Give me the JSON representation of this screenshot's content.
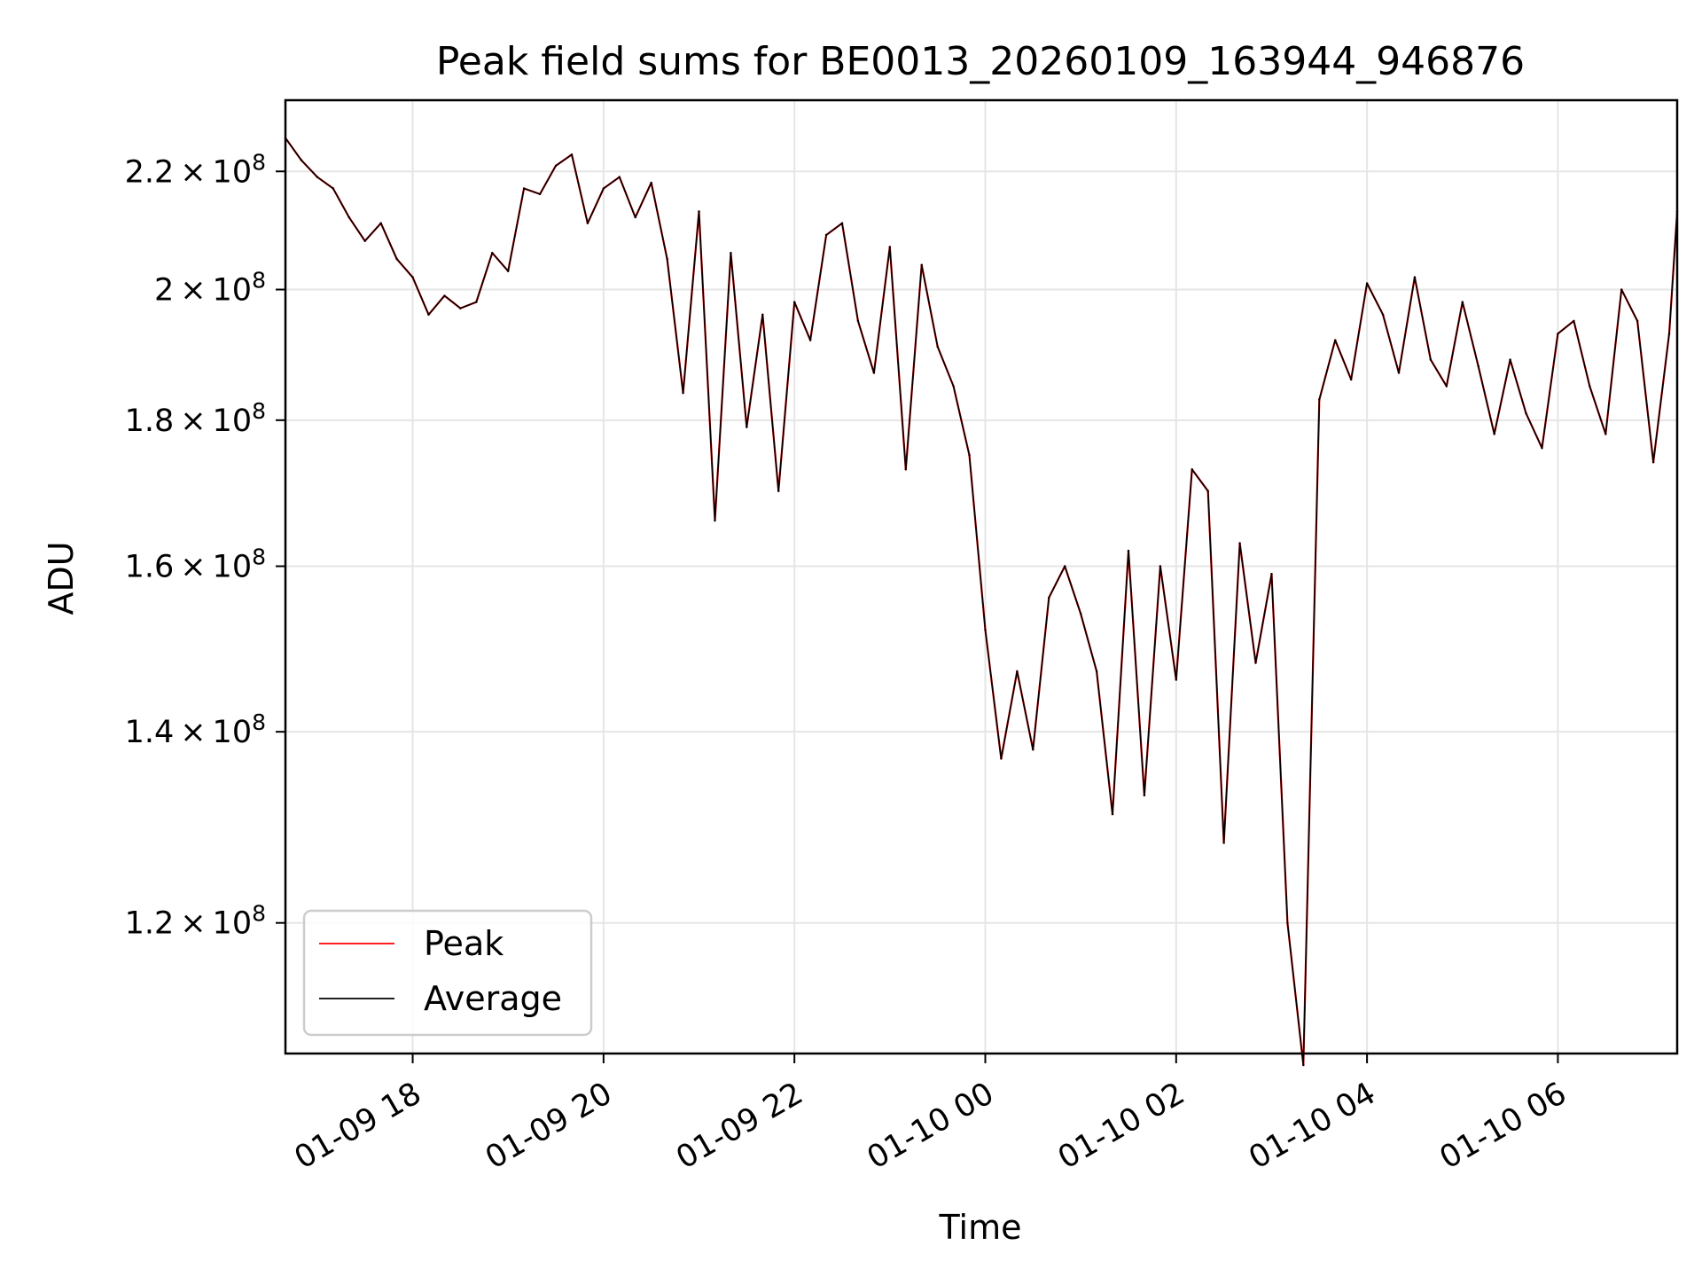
{
  "chart_data": {
    "type": "line",
    "title": "Peak field sums for BE0013_20260109_163944_946876",
    "xlabel": "Time",
    "ylabel": "ADU",
    "y_scale": "log",
    "grid": true,
    "legend_position": "lower-left",
    "xlim": [
      "2026-01-09 16:40",
      "2026-01-10 07:15"
    ],
    "ylim": [
      108000000.0,
      233000000.0
    ],
    "x_ticks": [
      {
        "value": "2026-01-09 18:00",
        "label": "01-09 18"
      },
      {
        "value": "2026-01-09 20:00",
        "label": "01-09 20"
      },
      {
        "value": "2026-01-09 22:00",
        "label": "01-09 22"
      },
      {
        "value": "2026-01-10 00:00",
        "label": "01-10 00"
      },
      {
        "value": "2026-01-10 02:00",
        "label": "01-10 02"
      },
      {
        "value": "2026-01-10 04:00",
        "label": "01-10 04"
      },
      {
        "value": "2026-01-10 06:00",
        "label": "01-10 06"
      }
    ],
    "y_ticks": [
      {
        "value": 120000000,
        "mantissa": "1.2",
        "base": "10",
        "exp": "8"
      },
      {
        "value": 140000000,
        "mantissa": "1.4",
        "base": "10",
        "exp": "8"
      },
      {
        "value": 160000000,
        "mantissa": "1.6",
        "base": "10",
        "exp": "8"
      },
      {
        "value": 180000000,
        "mantissa": "1.8",
        "base": "10",
        "exp": "8"
      },
      {
        "value": 200000000,
        "mantissa": "2",
        "base": "10",
        "exp": "8"
      },
      {
        "value": 220000000,
        "mantissa": "2.2",
        "base": "10",
        "exp": "8"
      }
    ],
    "x": [
      "2026-01-09 16:40",
      "2026-01-09 16:50",
      "2026-01-09 17:00",
      "2026-01-09 17:10",
      "2026-01-09 17:20",
      "2026-01-09 17:30",
      "2026-01-09 17:40",
      "2026-01-09 17:50",
      "2026-01-09 18:00",
      "2026-01-09 18:10",
      "2026-01-09 18:20",
      "2026-01-09 18:30",
      "2026-01-09 18:40",
      "2026-01-09 18:50",
      "2026-01-09 19:00",
      "2026-01-09 19:10",
      "2026-01-09 19:20",
      "2026-01-09 19:30",
      "2026-01-09 19:40",
      "2026-01-09 19:50",
      "2026-01-09 20:00",
      "2026-01-09 20:10",
      "2026-01-09 20:20",
      "2026-01-09 20:30",
      "2026-01-09 20:40",
      "2026-01-09 20:50",
      "2026-01-09 21:00",
      "2026-01-09 21:10",
      "2026-01-09 21:20",
      "2026-01-09 21:30",
      "2026-01-09 21:40",
      "2026-01-09 21:50",
      "2026-01-09 22:00",
      "2026-01-09 22:10",
      "2026-01-09 22:20",
      "2026-01-09 22:30",
      "2026-01-09 22:40",
      "2026-01-09 22:50",
      "2026-01-09 23:00",
      "2026-01-09 23:10",
      "2026-01-09 23:20",
      "2026-01-09 23:30",
      "2026-01-09 23:40",
      "2026-01-09 23:50",
      "2026-01-10 00:00",
      "2026-01-10 00:10",
      "2026-01-10 00:20",
      "2026-01-10 00:30",
      "2026-01-10 00:40",
      "2026-01-10 00:50",
      "2026-01-10 01:00",
      "2026-01-10 01:10",
      "2026-01-10 01:20",
      "2026-01-10 01:30",
      "2026-01-10 01:40",
      "2026-01-10 01:50",
      "2026-01-10 02:00",
      "2026-01-10 02:10",
      "2026-01-10 02:20",
      "2026-01-10 02:30",
      "2026-01-10 02:40",
      "2026-01-10 02:50",
      "2026-01-10 03:00",
      "2026-01-10 03:10",
      "2026-01-10 03:20",
      "2026-01-10 03:30",
      "2026-01-10 03:40",
      "2026-01-10 03:50",
      "2026-01-10 04:00",
      "2026-01-10 04:10",
      "2026-01-10 04:20",
      "2026-01-10 04:30",
      "2026-01-10 04:40",
      "2026-01-10 04:50",
      "2026-01-10 05:00",
      "2026-01-10 05:10",
      "2026-01-10 05:20",
      "2026-01-10 05:30",
      "2026-01-10 05:40",
      "2026-01-10 05:50",
      "2026-01-10 06:00",
      "2026-01-10 06:10",
      "2026-01-10 06:20",
      "2026-01-10 06:30",
      "2026-01-10 06:40",
      "2026-01-10 06:50",
      "2026-01-10 07:00",
      "2026-01-10 07:10",
      "2026-01-10 07:15"
    ],
    "series": [
      {
        "name": "Peak",
        "color": "#ff0000",
        "values": [
          226000000.0,
          222000000.0,
          219000000.0,
          217000000.0,
          212000000.0,
          208000000.0,
          211000000.0,
          205000000.0,
          202000000.0,
          196000000.0,
          199000000.0,
          197000000.0,
          198000000.0,
          206000000.0,
          203000000.0,
          217000000.0,
          216000000.0,
          221000000.0,
          223000000.0,
          211000000.0,
          217000000.0,
          219000000.0,
          212000000.0,
          218000000.0,
          205000000.0,
          184000000.0,
          213000000.0,
          166000000.0,
          206000000.0,
          179000000.0,
          196000000.0,
          170000000.0,
          198000000.0,
          192000000.0,
          209000000.0,
          211000000.0,
          195000000.0,
          187000000.0,
          207000000.0,
          173000000.0,
          204000000.0,
          191000000.0,
          185000000.0,
          175000000.0,
          152000000.0,
          137000000.0,
          147000000.0,
          138000000.0,
          156000000.0,
          160000000.0,
          154000000.0,
          147000000.0,
          131000000.0,
          162000000.0,
          133000000.0,
          160000000.0,
          146000000.0,
          173000000.0,
          170000000.0,
          128000000.0,
          163000000.0,
          148000000.0,
          159000000.0,
          120000000.0,
          107000000.0,
          183000000.0,
          192000000.0,
          186000000.0,
          201000000.0,
          196000000.0,
          187000000.0,
          202000000.0,
          189000000.0,
          185000000.0,
          198000000.0,
          188000000.0,
          178000000.0,
          189000000.0,
          181000000.0,
          176000000.0,
          193000000.0,
          195000000.0,
          185000000.0,
          178000000.0,
          200000000.0,
          195000000.0,
          174000000.0,
          193000000.0,
          213000000.0
        ]
      },
      {
        "name": "Average",
        "color": "#000000",
        "values": [
          226000000.0,
          222000000.0,
          219000000.0,
          217000000.0,
          212000000.0,
          208000000.0,
          211000000.0,
          205000000.0,
          202000000.0,
          196000000.0,
          199000000.0,
          197000000.0,
          198000000.0,
          206000000.0,
          203000000.0,
          217000000.0,
          216000000.0,
          221000000.0,
          223000000.0,
          211000000.0,
          217000000.0,
          219000000.0,
          212000000.0,
          218000000.0,
          205000000.0,
          184000000.0,
          213000000.0,
          166000000.0,
          206000000.0,
          179000000.0,
          196000000.0,
          170000000.0,
          198000000.0,
          192000000.0,
          209000000.0,
          211000000.0,
          195000000.0,
          187000000.0,
          207000000.0,
          173000000.0,
          204000000.0,
          191000000.0,
          185000000.0,
          175000000.0,
          152000000.0,
          137000000.0,
          147000000.0,
          138000000.0,
          156000000.0,
          160000000.0,
          154000000.0,
          147000000.0,
          131000000.0,
          162000000.0,
          133000000.0,
          160000000.0,
          146000000.0,
          173000000.0,
          170000000.0,
          128000000.0,
          163000000.0,
          148000000.0,
          159000000.0,
          120000000.0,
          107000000.0,
          183000000.0,
          192000000.0,
          186000000.0,
          201000000.0,
          196000000.0,
          187000000.0,
          202000000.0,
          189000000.0,
          185000000.0,
          198000000.0,
          188000000.0,
          178000000.0,
          189000000.0,
          181000000.0,
          176000000.0,
          193000000.0,
          195000000.0,
          185000000.0,
          178000000.0,
          200000000.0,
          195000000.0,
          174000000.0,
          193000000.0,
          213000000.0
        ]
      }
    ]
  }
}
